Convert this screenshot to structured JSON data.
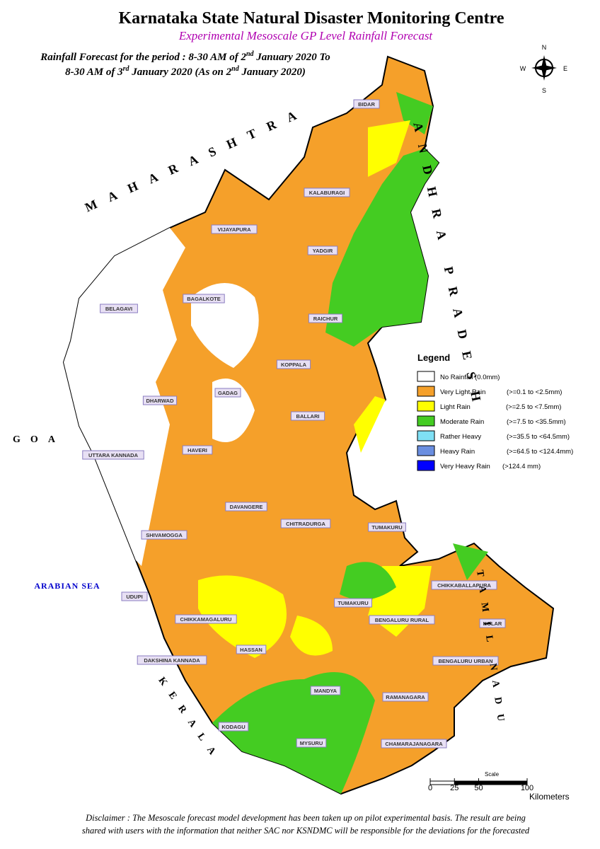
{
  "header": {
    "title": "Karnataka State Natural Disaster Monitoring Centre",
    "subtitle": "Experimental Mesoscale GP Level Rainfall Forecast",
    "period_line1": [
      "Rainfall Forecast for the period : 8-30 AM of 2",
      "nd",
      " January 2020 To"
    ],
    "period_line2": [
      "8-30 AM of 3",
      "rd",
      " January 2020 (As on 2",
      "nd",
      " January 2020)"
    ]
  },
  "compass": {
    "north": "N",
    "south": "S",
    "east": "E",
    "west": "W"
  },
  "legend": {
    "title": "Legend",
    "items": [
      {
        "label": "No Rainfall (0.0mm)",
        "range": "",
        "color": "#ffffff"
      },
      {
        "label": "Very Light Rain",
        "range": "(>=0.1 to <2.5mm)",
        "color": "#f5a02a"
      },
      {
        "label": " Light Rain",
        "range": "(>=2.5 to <7.5mm)",
        "color": "#ffff00"
      },
      {
        "label": "Moderate Rain",
        "range": "(>=7.5 to <35.5mm)",
        "color": "#44cc22"
      },
      {
        "label": "Rather Heavy",
        "range": "(>=35.5 to <64.5mm)",
        "color": "#7fe0f5"
      },
      {
        "label": "Heavy Rain",
        "range": "(>=64.5 to <124.4mm)",
        "color": "#6a8ee0"
      },
      {
        "label": "Very Heavy Rain",
        "range": "(>124.4 mm)",
        "color": "#0000ff"
      }
    ]
  },
  "neighbors": [
    "MAHARASHTRA",
    "ANDHRA PRADESH",
    "TAMIL NADU",
    "KERALA",
    "GOA",
    "ARABIAN SEA"
  ],
  "districts": [
    "BIDAR",
    "KALABURAGI",
    "VIJAYAPURA",
    "YADGIR",
    "BAGALKOTE",
    "BELAGAVI",
    "RAICHUR",
    "KOPPALA",
    "GADAG",
    "DHARWAD",
    "BALLARI",
    "HAVERI",
    "UTTARA KANNADA",
    "DAVANGERE",
    "CHITRADURGA",
    "SHIVAMOGGA",
    "TUMAKURU",
    "CHIKKABALLAPURA",
    "UDUPI",
    "TUMAKURU",
    "BENGALURU RURAL",
    "KOLAR",
    "CHIKKAMAGALURU",
    "HASSAN",
    "DAKSHINA KANNADA",
    "BENGALURU URBAN",
    "MANDYA",
    "RAMANAGARA",
    "KODAGU",
    "MYSURU",
    "CHAMARAJANAGARA"
  ],
  "scale": {
    "label": "Scale",
    "ticks": [
      0,
      25,
      50,
      100
    ],
    "unit": "Kilometers"
  },
  "disclaimer": [
    "Disclaimer : The Mesoscale forecast model development has been taken up on pilot experimental basis. The result are being",
    "shared with users with the information that neither SAC nor KSNDMC will be responsible  for the deviations for the forecasted"
  ]
}
